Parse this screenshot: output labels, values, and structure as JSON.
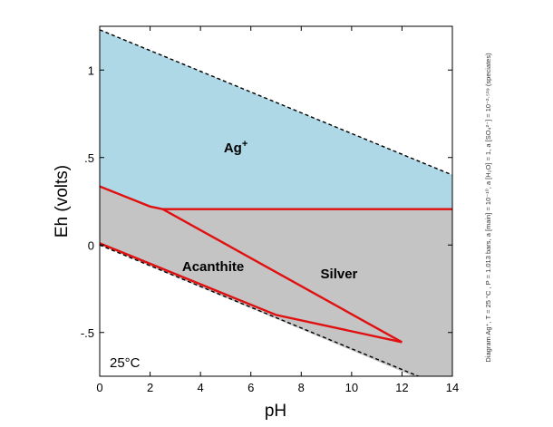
{
  "chart_data": {
    "type": "area",
    "xlabel": "pH",
    "ylabel": "Eh (volts)",
    "xlim": [
      0,
      14
    ],
    "ylim": [
      -0.75,
      1.25
    ],
    "x_ticks": [
      0,
      2,
      4,
      6,
      8,
      10,
      12,
      14
    ],
    "x_tick_labels": [
      "0",
      "2",
      "4",
      "6",
      "8",
      "10",
      "12",
      "14"
    ],
    "y_ticks": [
      -0.5,
      0,
      0.5,
      1
    ],
    "y_tick_labels": [
      "-.5",
      "0",
      ".5",
      "1"
    ],
    "temperature_label": "25°C",
    "side_note": "Diagram Ag⁺, T = 25 °C , P = 1.013 bars, a [main] = 10⁻¹⁰, a [H₂O] = 1, a [SO₄²⁻] = 10⁻²·⁵¹⁹ (speciates)",
    "colors": {
      "ag_ion_region": "#aed8e6",
      "silver_region": "#c4c4c4",
      "boundary": "#e01010",
      "water_limit": "#000000"
    },
    "water_limits": {
      "upper": [
        [
          0,
          1.23
        ],
        [
          14,
          0.4
        ]
      ],
      "lower": [
        [
          0,
          0.0
        ],
        [
          14,
          -0.83
        ]
      ]
    },
    "regions": [
      {
        "label": "Ag",
        "superscript": "+",
        "label_pos": [
          5.4,
          0.53
        ],
        "fill": "#aed8e6",
        "polygon": [
          [
            0,
            1.23
          ],
          [
            14,
            0.4
          ],
          [
            14,
            0.205
          ],
          [
            2.5,
            0.205
          ],
          [
            2.0,
            0.22
          ],
          [
            0,
            0.335
          ]
        ]
      },
      {
        "label": "Silver",
        "superscript": "",
        "label_pos": [
          9.5,
          -0.19
        ],
        "fill": "#c4c4c4",
        "polygon": [
          [
            0,
            0.335
          ],
          [
            2.0,
            0.22
          ],
          [
            2.5,
            0.205
          ],
          [
            14,
            0.205
          ],
          [
            14,
            -0.83
          ],
          [
            12.45,
            -0.75
          ],
          [
            0,
            0.0
          ]
        ]
      },
      {
        "label": "Acanthite",
        "superscript": "",
        "label_pos": [
          4.5,
          -0.15
        ],
        "fill": "none",
        "polygon": []
      }
    ],
    "boundaries": [
      [
        [
          0,
          0.335
        ],
        [
          2.0,
          0.22
        ],
        [
          2.5,
          0.205
        ],
        [
          14,
          0.205
        ]
      ],
      [
        [
          2.5,
          0.205
        ],
        [
          12,
          -0.555
        ]
      ],
      [
        [
          0,
          0.01
        ],
        [
          7,
          -0.4
        ],
        [
          12,
          -0.555
        ]
      ]
    ]
  }
}
